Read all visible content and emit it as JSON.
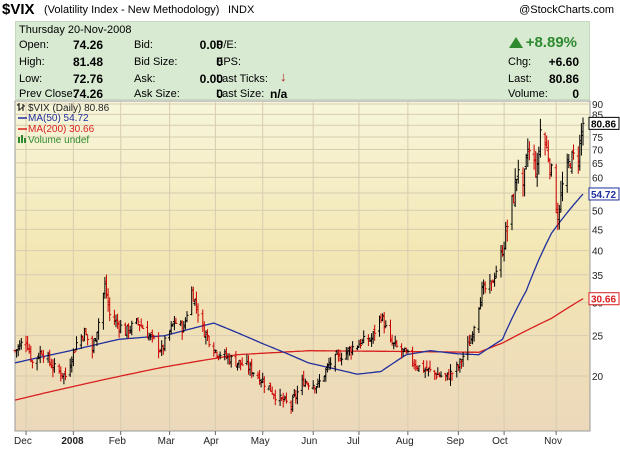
{
  "header": {
    "symbol": "$VIX",
    "name": "(Volatility Index - New Methodology)",
    "exchange": "INDX",
    "copyright": "@StockCharts.com"
  },
  "quote": {
    "date": "Thursday  20-Nov-2008",
    "open_label": "Open:",
    "open": "74.26",
    "high_label": "High:",
    "high": "81.48",
    "low_label": "Low:",
    "low": "72.76",
    "prev_label": "Prev Close:",
    "prev": "74.26",
    "bid_label": "Bid:",
    "bid": "0.00",
    "bidsize_label": "Bid Size:",
    "bidsize": "0",
    "ask_label": "Ask:",
    "ask": "0.00",
    "asksize_label": "Ask Size:",
    "asksize": "0",
    "pe_label": "P/E:",
    "eps_label": "EPS:",
    "lastticks_label": "Last Ticks:",
    "lastsize_label": "Last Size:",
    "lastsize": "n/a",
    "pct_change": "+8.89%",
    "chg_label": "Chg:",
    "chg": "+6.60",
    "last_label": "Last:",
    "last": "80.86",
    "volume_label": "Volume:",
    "volume": "0"
  },
  "colors": {
    "up": "#2f8a2f",
    "price_bars": "#000000",
    "ma50": "#1f2f9f",
    "ma200": "#d81f1f",
    "volume": "#2f8a2f",
    "grid": "#d8ccb0",
    "price_marker": "#000000"
  },
  "chart_data": {
    "type": "ohlc",
    "legend": {
      "price": "$VIX (Daily) 80.86",
      "ma50": "MA(50) 54.72",
      "ma200": "MA(200) 30.66",
      "volume": "Volume undef"
    },
    "y_scale": "log",
    "ylim": [
      15,
      90
    ],
    "y_ticks": [
      20,
      25,
      30,
      35,
      40,
      45,
      50,
      55,
      60,
      65,
      70,
      75,
      80,
      85,
      90
    ],
    "x_labels": [
      "Dec",
      "2008",
      "Feb",
      "Mar",
      "Apr",
      "May",
      "Jun",
      "Jul",
      "Aug",
      "Sep",
      "Oct",
      "Nov"
    ],
    "last_price_label": "80.86",
    "ma50_label": "54.72",
    "ma200_label": "30.66",
    "price_anchors": [
      [
        "2007-11-26",
        23
      ],
      [
        "2007-12-03",
        24.5
      ],
      [
        "2007-12-07",
        21.5
      ],
      [
        "2007-12-13",
        23
      ],
      [
        "2007-12-20",
        21
      ],
      [
        "2007-12-28",
        20
      ],
      [
        "2008-01-04",
        24
      ],
      [
        "2008-01-09",
        25.5
      ],
      [
        "2008-01-14",
        23
      ],
      [
        "2008-01-18",
        27
      ],
      [
        "2008-01-22",
        33
      ],
      [
        "2008-01-25",
        28
      ],
      [
        "2008-02-04",
        25.5
      ],
      [
        "2008-02-12",
        27
      ],
      [
        "2008-02-19",
        25
      ],
      [
        "2008-02-27",
        23
      ],
      [
        "2008-03-06",
        27
      ],
      [
        "2008-03-12",
        26
      ],
      [
        "2008-03-17",
        32
      ],
      [
        "2008-03-24",
        26
      ],
      [
        "2008-04-01",
        23
      ],
      [
        "2008-04-10",
        22
      ],
      [
        "2008-04-22",
        21
      ],
      [
        "2008-05-01",
        19.5
      ],
      [
        "2008-05-12",
        17.5
      ],
      [
        "2008-05-19",
        17
      ],
      [
        "2008-05-27",
        19.5
      ],
      [
        "2008-06-05",
        19
      ],
      [
        "2008-06-13",
        21.5
      ],
      [
        "2008-06-24",
        23
      ],
      [
        "2008-07-01",
        24
      ],
      [
        "2008-07-09",
        24.5
      ],
      [
        "2008-07-15",
        28
      ],
      [
        "2008-07-21",
        24
      ],
      [
        "2008-07-31",
        22.5
      ],
      [
        "2008-08-08",
        21
      ],
      [
        "2008-08-15",
        20.5
      ],
      [
        "2008-08-25",
        19.8
      ],
      [
        "2008-09-02",
        21
      ],
      [
        "2008-09-10",
        24.5
      ],
      [
        "2008-09-17",
        32
      ],
      [
        "2008-09-23",
        33
      ],
      [
        "2008-09-30",
        40
      ],
      [
        "2008-10-07",
        54
      ],
      [
        "2008-10-10",
        64
      ],
      [
        "2008-10-13",
        55
      ],
      [
        "2008-10-16",
        70
      ],
      [
        "2008-10-22",
        62
      ],
      [
        "2008-10-24",
        78
      ],
      [
        "2008-10-29",
        68
      ],
      [
        "2008-11-04",
        48
      ],
      [
        "2008-11-07",
        57
      ],
      [
        "2008-11-12",
        66
      ],
      [
        "2008-11-17",
        68
      ],
      [
        "2008-11-20",
        80.86
      ]
    ],
    "ma50_anchors": [
      [
        "2007-11-26",
        21.5
      ],
      [
        "2007-12-31",
        23
      ],
      [
        "2008-01-31",
        24.5
      ],
      [
        "2008-02-29",
        25
      ],
      [
        "2008-03-31",
        26.8
      ],
      [
        "2008-04-30",
        24
      ],
      [
        "2008-05-30",
        21.5
      ],
      [
        "2008-06-30",
        20.2
      ],
      [
        "2008-07-15",
        20.5
      ],
      [
        "2008-07-31",
        22.5
      ],
      [
        "2008-08-15",
        23
      ],
      [
        "2008-09-02",
        22.6
      ],
      [
        "2008-09-15",
        22.5
      ],
      [
        "2008-09-30",
        24.5
      ],
      [
        "2008-10-15",
        32
      ],
      [
        "2008-10-31",
        44
      ],
      [
        "2008-11-20",
        54.72
      ]
    ],
    "ma200_anchors": [
      [
        "2007-11-26",
        17.5
      ],
      [
        "2007-12-31",
        18.8
      ],
      [
        "2008-02-28",
        21
      ],
      [
        "2008-04-15",
        22.5
      ],
      [
        "2008-05-30",
        23
      ],
      [
        "2008-07-31",
        22.9
      ],
      [
        "2008-09-15",
        22.8
      ],
      [
        "2008-09-30",
        24
      ],
      [
        "2008-10-31",
        27.5
      ],
      [
        "2008-11-20",
        30.66
      ]
    ]
  }
}
